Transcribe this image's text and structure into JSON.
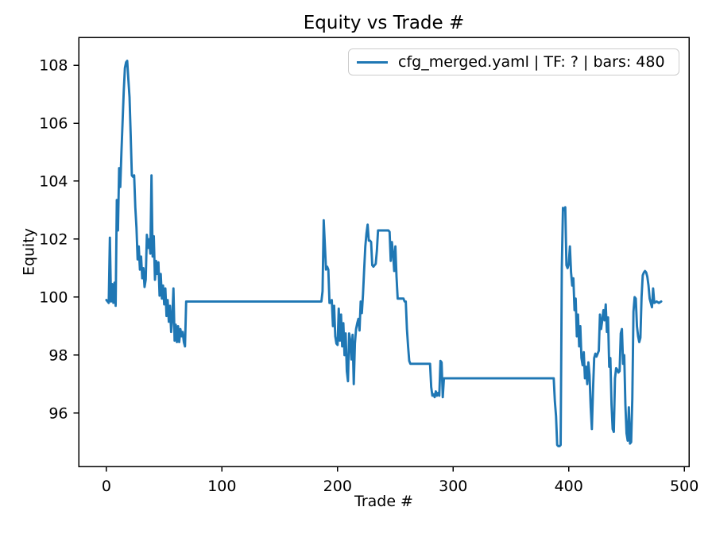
{
  "chart_data": {
    "type": "line",
    "title": "Equity vs Trade #",
    "xlabel": "Trade #",
    "ylabel": "Equity",
    "xlim": [
      -24,
      504
    ],
    "ylim": [
      94.16,
      108.96
    ],
    "x_ticks": [
      0,
      100,
      200,
      300,
      400,
      500
    ],
    "y_ticks": [
      96,
      98,
      100,
      102,
      104,
      106,
      108
    ],
    "grid": false,
    "colors": {
      "line": "#1f77b4",
      "spine": "#000000",
      "tick_label": "#000000",
      "legend_border": "#cccccc"
    },
    "legend": {
      "position": "upper right",
      "entries": [
        {
          "label": "cfg_merged.yaml | TF: ? | bars: 480",
          "color": "#1f77b4"
        }
      ]
    },
    "series": [
      {
        "name": "cfg_merged.yaml | TF: ? | bars: 480",
        "color": "#1f77b4",
        "points": [
          [
            0,
            99.9
          ],
          [
            1,
            99.85
          ],
          [
            2,
            99.8
          ],
          [
            3,
            102.05
          ],
          [
            4,
            99.85
          ],
          [
            5,
            100.45
          ],
          [
            6,
            99.8
          ],
          [
            7,
            100.5
          ],
          [
            8,
            99.7
          ],
          [
            9,
            103.35
          ],
          [
            10,
            102.3
          ],
          [
            11,
            104.45
          ],
          [
            12,
            103.8
          ],
          [
            13,
            105.0
          ],
          [
            14,
            106.05
          ],
          [
            15,
            107.1
          ],
          [
            16,
            107.9
          ],
          [
            17,
            108.1
          ],
          [
            18,
            108.15
          ],
          [
            19,
            107.5
          ],
          [
            20,
            106.9
          ],
          [
            21,
            105.6
          ],
          [
            22,
            104.2
          ],
          [
            23,
            104.15
          ],
          [
            24,
            104.2
          ],
          [
            25,
            103.1
          ],
          [
            26,
            102.4
          ],
          [
            27,
            101.3
          ],
          [
            28,
            101.75
          ],
          [
            29,
            100.95
          ],
          [
            30,
            101.4
          ],
          [
            31,
            100.65
          ],
          [
            32,
            101.0
          ],
          [
            33,
            100.35
          ],
          [
            34,
            100.6
          ],
          [
            35,
            102.15
          ],
          [
            36,
            101.7
          ],
          [
            37,
            102.0
          ],
          [
            38,
            101.5
          ],
          [
            39,
            104.2
          ],
          [
            40,
            101.4
          ],
          [
            41,
            102.1
          ],
          [
            42,
            100.6
          ],
          [
            43,
            101.25
          ],
          [
            44,
            100.8
          ],
          [
            45,
            101.2
          ],
          [
            46,
            100.05
          ],
          [
            47,
            100.8
          ],
          [
            48,
            99.95
          ],
          [
            49,
            100.4
          ],
          [
            50,
            99.75
          ],
          [
            51,
            100.3
          ],
          [
            52,
            99.35
          ],
          [
            53,
            99.9
          ],
          [
            54,
            99.15
          ],
          [
            55,
            99.7
          ],
          [
            56,
            98.8
          ],
          [
            57,
            99.3
          ],
          [
            58,
            100.3
          ],
          [
            59,
            98.5
          ],
          [
            60,
            99.05
          ],
          [
            61,
            98.45
          ],
          [
            62,
            99.0
          ],
          [
            63,
            98.45
          ],
          [
            64,
            98.9
          ],
          [
            65,
            98.65
          ],
          [
            66,
            98.8
          ],
          [
            67,
            98.45
          ],
          [
            68,
            98.3
          ],
          [
            69,
            99.85
          ],
          [
            186,
            99.85
          ],
          [
            187,
            100.2
          ],
          [
            188,
            102.65
          ],
          [
            189,
            101.8
          ],
          [
            190,
            100.95
          ],
          [
            191,
            101.05
          ],
          [
            192,
            100.95
          ],
          [
            193,
            99.8
          ],
          [
            194,
            99.8
          ],
          [
            195,
            99.9
          ],
          [
            196,
            99.0
          ],
          [
            197,
            99.7
          ],
          [
            198,
            98.65
          ],
          [
            199,
            98.4
          ],
          [
            200,
            98.35
          ],
          [
            201,
            99.6
          ],
          [
            202,
            98.5
          ],
          [
            203,
            99.4
          ],
          [
            204,
            98.3
          ],
          [
            205,
            99.1
          ],
          [
            206,
            98.0
          ],
          [
            207,
            98.75
          ],
          [
            208,
            97.45
          ],
          [
            209,
            97.1
          ],
          [
            210,
            98.75
          ],
          [
            211,
            98.5
          ],
          [
            212,
            97.85
          ],
          [
            213,
            98.7
          ],
          [
            214,
            97.0
          ],
          [
            215,
            98.4
          ],
          [
            216,
            98.9
          ],
          [
            217,
            99.1
          ],
          [
            218,
            99.25
          ],
          [
            219,
            98.85
          ],
          [
            220,
            99.85
          ],
          [
            221,
            99.45
          ],
          [
            222,
            100.1
          ],
          [
            223,
            100.95
          ],
          [
            224,
            101.75
          ],
          [
            225,
            102.2
          ],
          [
            226,
            102.5
          ],
          [
            227,
            101.95
          ],
          [
            228,
            101.95
          ],
          [
            229,
            101.9
          ],
          [
            230,
            101.1
          ],
          [
            231,
            101.05
          ],
          [
            232,
            101.1
          ],
          [
            233,
            101.15
          ],
          [
            234,
            101.6
          ],
          [
            235,
            102.3
          ],
          [
            244,
            102.3
          ],
          [
            245,
            102.25
          ],
          [
            246,
            101.25
          ],
          [
            247,
            101.9
          ],
          [
            248,
            101.5
          ],
          [
            249,
            100.9
          ],
          [
            250,
            101.75
          ],
          [
            251,
            100.7
          ],
          [
            252,
            99.95
          ],
          [
            257,
            99.95
          ],
          [
            258,
            99.85
          ],
          [
            259,
            99.85
          ],
          [
            260,
            98.9
          ],
          [
            261,
            98.3
          ],
          [
            262,
            97.8
          ],
          [
            263,
            97.7
          ],
          [
            280,
            97.7
          ],
          [
            281,
            96.9
          ],
          [
            282,
            96.6
          ],
          [
            283,
            96.65
          ],
          [
            284,
            96.55
          ],
          [
            285,
            96.75
          ],
          [
            286,
            96.6
          ],
          [
            287,
            96.7
          ],
          [
            288,
            96.6
          ],
          [
            289,
            97.8
          ],
          [
            290,
            97.75
          ],
          [
            291,
            96.55
          ],
          [
            292,
            97.2
          ],
          [
            387,
            97.2
          ],
          [
            388,
            96.4
          ],
          [
            389,
            95.9
          ],
          [
            390,
            94.9
          ],
          [
            391,
            94.86
          ],
          [
            392,
            94.86
          ],
          [
            393,
            94.9
          ],
          [
            394,
            101.0
          ],
          [
            395,
            103.08
          ],
          [
            396,
            103.0
          ],
          [
            397,
            103.1
          ],
          [
            398,
            101.1
          ],
          [
            399,
            101.0
          ],
          [
            400,
            101.15
          ],
          [
            401,
            101.75
          ],
          [
            402,
            100.85
          ],
          [
            403,
            100.4
          ],
          [
            404,
            100.65
          ],
          [
            405,
            99.55
          ],
          [
            406,
            99.95
          ],
          [
            407,
            98.65
          ],
          [
            408,
            99.4
          ],
          [
            409,
            98.3
          ],
          [
            410,
            99.0
          ],
          [
            411,
            97.9
          ],
          [
            412,
            97.65
          ],
          [
            413,
            98.1
          ],
          [
            414,
            97.2
          ],
          [
            415,
            97.6
          ],
          [
            416,
            97.0
          ],
          [
            417,
            97.75
          ],
          [
            418,
            97.3
          ],
          [
            419,
            96.2
          ],
          [
            420,
            95.45
          ],
          [
            421,
            96.8
          ],
          [
            422,
            97.9
          ],
          [
            423,
            98.05
          ],
          [
            424,
            97.95
          ],
          [
            425,
            98.05
          ],
          [
            426,
            98.15
          ],
          [
            427,
            99.4
          ],
          [
            428,
            98.9
          ],
          [
            429,
            99.2
          ],
          [
            430,
            99.55
          ],
          [
            431,
            99.2
          ],
          [
            432,
            99.75
          ],
          [
            433,
            98.8
          ],
          [
            434,
            99.3
          ],
          [
            435,
            97.6
          ],
          [
            436,
            97.9
          ],
          [
            437,
            96.3
          ],
          [
            438,
            95.45
          ],
          [
            439,
            95.35
          ],
          [
            440,
            97.2
          ],
          [
            441,
            97.55
          ],
          [
            442,
            97.5
          ],
          [
            443,
            97.4
          ],
          [
            444,
            97.45
          ],
          [
            445,
            98.75
          ],
          [
            446,
            98.9
          ],
          [
            447,
            97.7
          ],
          [
            448,
            98.0
          ],
          [
            449,
            96.3
          ],
          [
            450,
            95.3
          ],
          [
            451,
            95.05
          ],
          [
            452,
            96.2
          ],
          [
            453,
            94.95
          ],
          [
            454,
            95.0
          ],
          [
            455,
            96.5
          ],
          [
            456,
            99.5
          ],
          [
            457,
            100.0
          ],
          [
            458,
            99.95
          ],
          [
            459,
            99.0
          ],
          [
            460,
            98.65
          ],
          [
            461,
            98.45
          ],
          [
            462,
            98.6
          ],
          [
            463,
            100.0
          ],
          [
            464,
            100.75
          ],
          [
            465,
            100.85
          ],
          [
            466,
            100.9
          ],
          [
            467,
            100.85
          ],
          [
            468,
            100.7
          ],
          [
            469,
            100.4
          ],
          [
            470,
            99.95
          ],
          [
            471,
            99.8
          ],
          [
            472,
            99.65
          ],
          [
            473,
            100.3
          ],
          [
            474,
            99.8
          ],
          [
            476,
            99.85
          ],
          [
            478,
            99.8
          ],
          [
            480,
            99.85
          ]
        ]
      }
    ]
  }
}
